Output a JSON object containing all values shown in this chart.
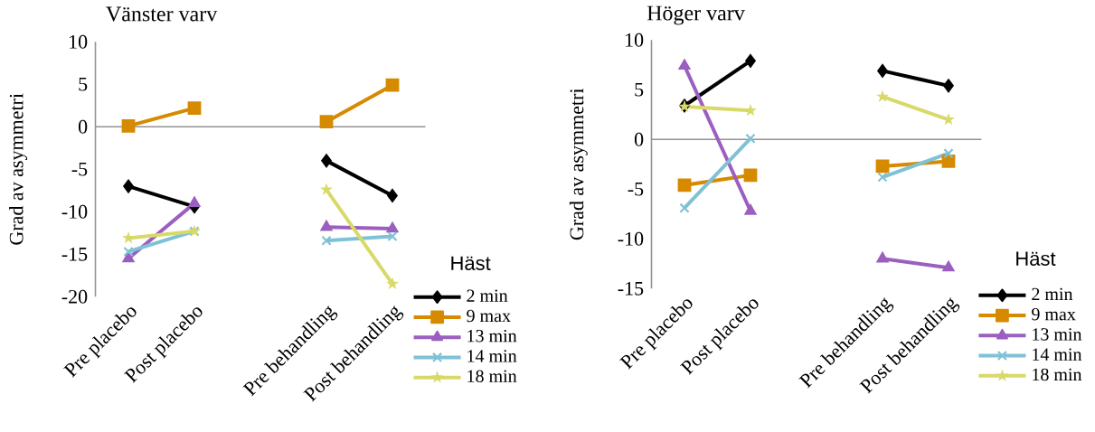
{
  "chart_data": [
    {
      "type": "line",
      "title": "Vänster varv",
      "ylabel": "Grad av asymmetri",
      "legend_title": "Häst",
      "legend": "bottom right",
      "categories": [
        "Pre placebo",
        "Post placebo",
        null,
        "Pre behandling",
        "Post behandling"
      ],
      "ylim": [
        -20,
        10
      ],
      "yticks": [
        -20,
        -15,
        -10,
        -5,
        0,
        5,
        10
      ],
      "series": [
        {
          "name": "2 min",
          "color": "#000000",
          "marker": "diamond",
          "values": [
            -7.0,
            -9.4,
            null,
            -4.0,
            -8.1
          ]
        },
        {
          "name": "9 max",
          "color": "#d68a00",
          "marker": "square",
          "values": [
            0.1,
            2.2,
            null,
            0.6,
            4.9
          ]
        },
        {
          "name": "13 min",
          "color": "#9b5fc0",
          "marker": "triangle",
          "values": [
            -15.5,
            -9.0,
            null,
            -11.8,
            -12.0
          ]
        },
        {
          "name": "14 min",
          "color": "#7fc1d6",
          "marker": "cross",
          "values": [
            -14.7,
            -12.3,
            null,
            -13.4,
            -12.9
          ]
        },
        {
          "name": "18 min",
          "color": "#d9d96a",
          "marker": "star",
          "values": [
            -13.1,
            -12.3,
            null,
            -7.4,
            -18.5
          ]
        }
      ]
    },
    {
      "type": "line",
      "title": "Höger varv",
      "ylabel": "Grad av asymmetri",
      "legend_title": "Häst",
      "legend": "bottom right",
      "categories": [
        "Pre placebo",
        "Post placebo",
        null,
        "Pre behandling",
        "Post behandling"
      ],
      "ylim": [
        -15,
        10
      ],
      "yticks": [
        -15,
        -10,
        -5,
        0,
        5,
        10
      ],
      "series": [
        {
          "name": "2 min",
          "color": "#000000",
          "marker": "diamond",
          "values": [
            3.4,
            7.9,
            null,
            6.9,
            5.4
          ]
        },
        {
          "name": "9 max",
          "color": "#d68a00",
          "marker": "square",
          "values": [
            -4.6,
            -3.6,
            null,
            -2.7,
            -2.2
          ]
        },
        {
          "name": "13 min",
          "color": "#9b5fc0",
          "marker": "triangle",
          "values": [
            7.4,
            -7.2,
            null,
            -12.0,
            -12.9
          ]
        },
        {
          "name": "14 min",
          "color": "#7fc1d6",
          "marker": "cross",
          "values": [
            -6.9,
            0.1,
            null,
            -3.8,
            -1.4
          ]
        },
        {
          "name": "18 min",
          "color": "#d9d96a",
          "marker": "star",
          "values": [
            3.3,
            2.9,
            null,
            4.3,
            2.0
          ]
        }
      ]
    }
  ]
}
